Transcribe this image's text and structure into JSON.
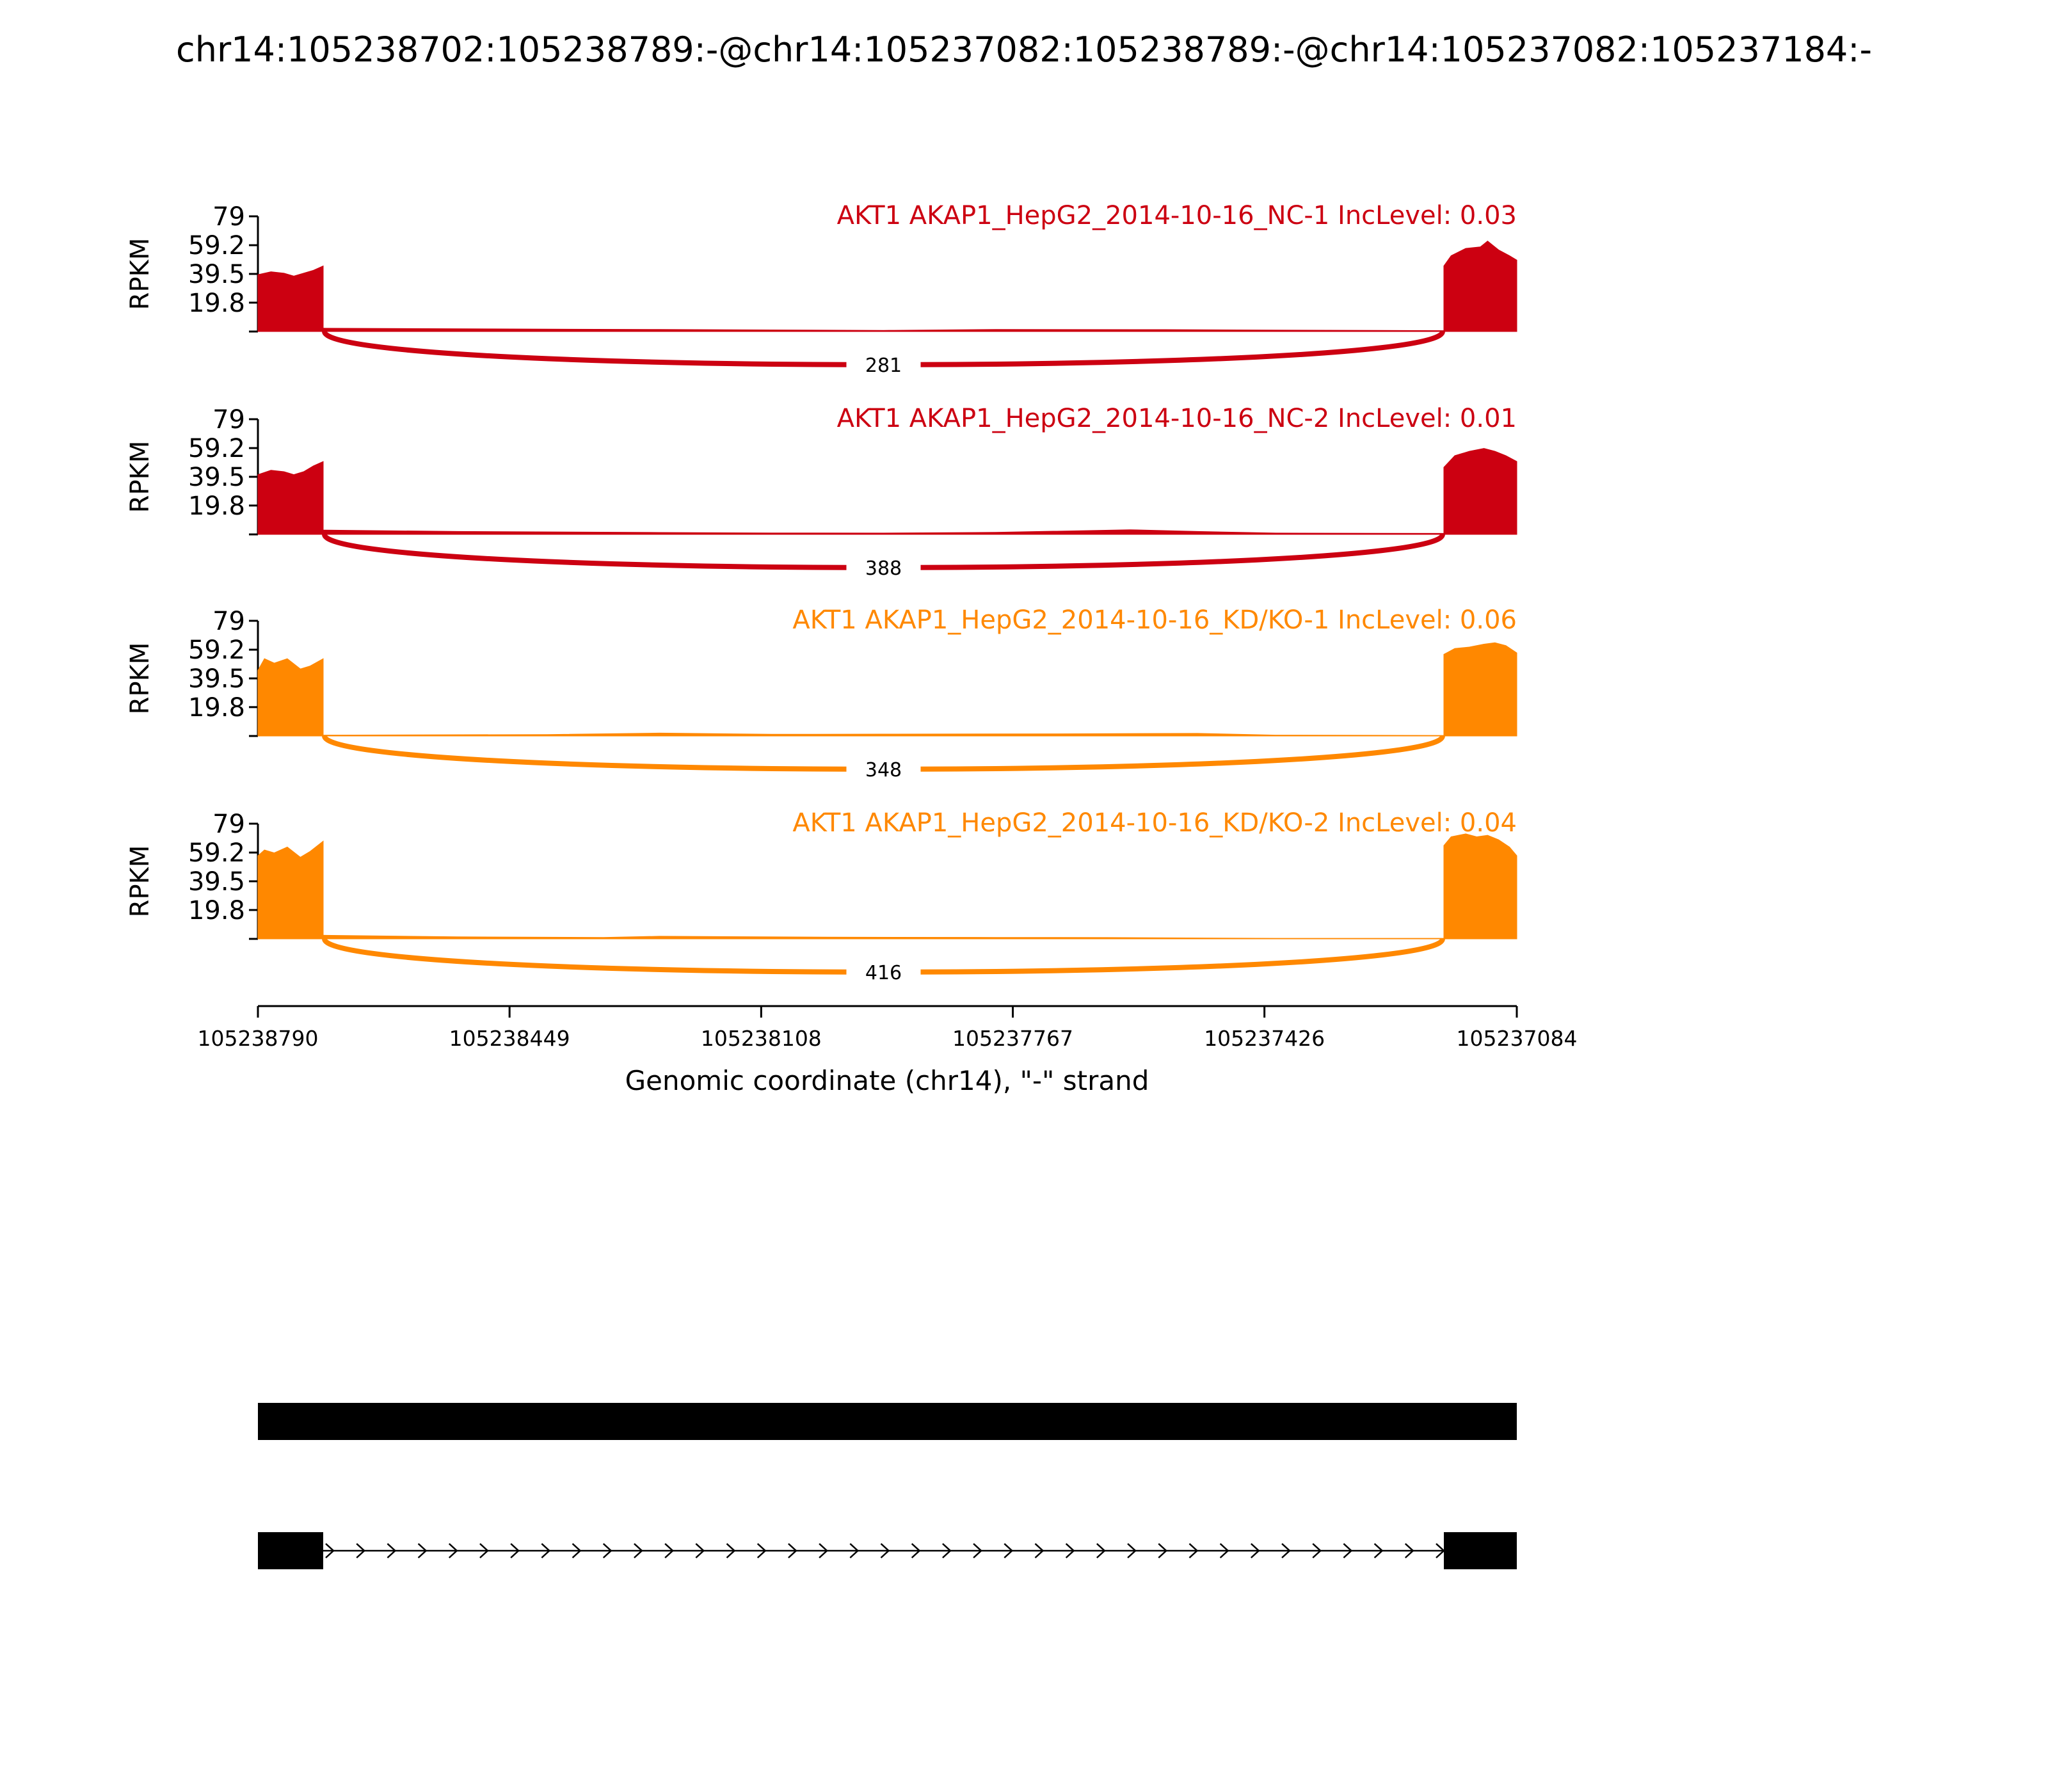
{
  "figure": {
    "title": "chr14:105238702:105238789:-@chr14:105237082:105238789:-@chr14:105237082:105237184:-"
  },
  "chart_data": {
    "type": "area",
    "subtype": "sashimi",
    "title": "chr14:105238702:105238789:-@chr14:105237082:105238789:-@chr14:105237082:105237184:-",
    "xlabel": "Genomic coordinate (chr14), \"-\" strand",
    "ylabel": "RPKM",
    "x_reversed": true,
    "xlim": [
      105238790,
      105237084
    ],
    "xticks": [
      105238790,
      105238449,
      105238108,
      105237767,
      105237426,
      105237084
    ],
    "xtick_labels": [
      "105238790",
      "105238449",
      "105238108",
      "105237767",
      "105237426",
      "105237084"
    ],
    "ylim": [
      0,
      79
    ],
    "yticks": [
      19.8,
      39.5,
      59.2,
      79
    ],
    "ytick_labels": [
      "19.8",
      "39.5",
      "59.2",
      "79"
    ],
    "exons": [
      {
        "start": 105238789,
        "end": 105238702
      },
      {
        "start": 105237184,
        "end": 105237082
      }
    ],
    "series": [
      {
        "name": "AKT1 AKAP1_HepG2_2014-10-16_NC-1 IncLevel: 0.03",
        "color": "#cc0011",
        "junction_count": 281,
        "exon1": [
          [
            0,
            39
          ],
          [
            0.2,
            41
          ],
          [
            0.4,
            40
          ],
          [
            0.55,
            38
          ],
          [
            0.7,
            40
          ],
          [
            0.85,
            42
          ],
          [
            1,
            45
          ]
        ],
        "intron": [
          [
            0,
            2.3
          ],
          [
            0.15,
            1.8
          ],
          [
            0.3,
            1.4
          ],
          [
            0.4,
            1.1
          ],
          [
            0.5,
            0.8
          ],
          [
            0.6,
            1.4
          ],
          [
            0.75,
            1.3
          ],
          [
            0.85,
            1.0
          ],
          [
            1,
            0.6
          ]
        ],
        "exon2": [
          [
            0,
            45
          ],
          [
            0.1,
            52
          ],
          [
            0.3,
            57
          ],
          [
            0.5,
            58
          ],
          [
            0.6,
            62
          ],
          [
            0.75,
            56
          ],
          [
            0.9,
            52
          ],
          [
            1,
            49
          ]
        ]
      },
      {
        "name": "AKT1 AKAP1_HepG2_2014-10-16_NC-2 IncLevel: 0.01",
        "color": "#cc0011",
        "junction_count": 388,
        "exon1": [
          [
            0,
            41
          ],
          [
            0.2,
            44
          ],
          [
            0.4,
            43
          ],
          [
            0.55,
            41
          ],
          [
            0.7,
            43
          ],
          [
            0.85,
            47
          ],
          [
            1,
            50
          ]
        ],
        "intron": [
          [
            0,
            3.0
          ],
          [
            0.12,
            2.0
          ],
          [
            0.3,
            1.3
          ],
          [
            0.4,
            1.0
          ],
          [
            0.5,
            0.9
          ],
          [
            0.6,
            1.4
          ],
          [
            0.72,
            3.2
          ],
          [
            0.78,
            2.0
          ],
          [
            0.85,
            0.9
          ],
          [
            1,
            0.7
          ]
        ],
        "exon2": [
          [
            0,
            46
          ],
          [
            0.15,
            54
          ],
          [
            0.35,
            57
          ],
          [
            0.55,
            59
          ],
          [
            0.7,
            57
          ],
          [
            0.85,
            54
          ],
          [
            1,
            50
          ]
        ]
      },
      {
        "name": "AKT1 AKAP1_HepG2_2014-10-16_KD/KO-1 IncLevel: 0.06",
        "color": "#ff8800",
        "junction_count": 348,
        "exon1": [
          [
            0,
            45
          ],
          [
            0.1,
            53
          ],
          [
            0.25,
            50
          ],
          [
            0.45,
            53
          ],
          [
            0.65,
            46
          ],
          [
            0.8,
            48
          ],
          [
            1,
            53
          ]
        ],
        "intron": [
          [
            0,
            0.6
          ],
          [
            0.2,
            1.0
          ],
          [
            0.3,
            2.0
          ],
          [
            0.4,
            1.2
          ],
          [
            0.5,
            1.3
          ],
          [
            0.65,
            1.5
          ],
          [
            0.78,
            1.8
          ],
          [
            0.85,
            0.6
          ],
          [
            1,
            0.4
          ]
        ],
        "exon2": [
          [
            0,
            56
          ],
          [
            0.15,
            60
          ],
          [
            0.35,
            61
          ],
          [
            0.55,
            63
          ],
          [
            0.7,
            64
          ],
          [
            0.85,
            62
          ],
          [
            1,
            57
          ]
        ]
      },
      {
        "name": "AKT1 AKAP1_HepG2_2014-10-16_KD/KO-2 IncLevel: 0.04",
        "color": "#ff8800",
        "junction_count": 416,
        "exon1": [
          [
            0,
            57
          ],
          [
            0.1,
            61
          ],
          [
            0.25,
            59
          ],
          [
            0.45,
            63
          ],
          [
            0.65,
            56
          ],
          [
            0.8,
            60
          ],
          [
            1,
            67
          ]
        ],
        "intron": [
          [
            0,
            2.5
          ],
          [
            0.12,
            1.4
          ],
          [
            0.25,
            1.0
          ],
          [
            0.3,
            1.8
          ],
          [
            0.45,
            1.2
          ],
          [
            0.6,
            1.0
          ],
          [
            0.7,
            0.9
          ],
          [
            0.85,
            0.4
          ],
          [
            1,
            0.4
          ]
        ],
        "exon2": [
          [
            0,
            64
          ],
          [
            0.1,
            70
          ],
          [
            0.3,
            72
          ],
          [
            0.45,
            70
          ],
          [
            0.6,
            71
          ],
          [
            0.75,
            68
          ],
          [
            0.9,
            63
          ],
          [
            1,
            57
          ]
        ]
      }
    ]
  }
}
